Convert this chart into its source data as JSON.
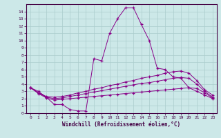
{
  "xlabel": "Windchill (Refroidissement éolien,°C)",
  "background_color": "#cce8e8",
  "line_color": "#880088",
  "x_values": [
    0,
    1,
    2,
    3,
    4,
    5,
    6,
    7,
    8,
    9,
    10,
    11,
    12,
    13,
    14,
    15,
    16,
    17,
    18,
    19,
    20,
    21,
    22,
    23
  ],
  "series1": [
    3.5,
    3.0,
    2.2,
    1.2,
    1.2,
    0.5,
    0.3,
    0.3,
    7.5,
    7.2,
    11.0,
    13.0,
    14.5,
    14.5,
    12.2,
    10.0,
    6.2,
    6.0,
    5.0,
    4.8,
    3.5,
    3.0,
    2.5,
    2.0
  ],
  "series2": [
    3.5,
    2.8,
    2.3,
    2.2,
    2.3,
    2.5,
    2.8,
    3.0,
    3.3,
    3.5,
    3.8,
    4.0,
    4.3,
    4.5,
    4.8,
    5.0,
    5.2,
    5.5,
    5.7,
    5.8,
    5.5,
    4.5,
    3.2,
    2.5
  ],
  "series3": [
    3.5,
    2.8,
    2.2,
    2.0,
    2.1,
    2.3,
    2.5,
    2.7,
    2.9,
    3.1,
    3.3,
    3.5,
    3.7,
    3.9,
    4.1,
    4.2,
    4.4,
    4.6,
    4.8,
    4.9,
    4.8,
    4.0,
    3.0,
    2.2
  ],
  "series4": [
    3.5,
    2.7,
    2.1,
    1.8,
    1.9,
    2.0,
    2.1,
    2.2,
    2.3,
    2.4,
    2.5,
    2.6,
    2.7,
    2.8,
    2.9,
    3.0,
    3.1,
    3.2,
    3.3,
    3.4,
    3.5,
    3.4,
    2.8,
    2.1
  ],
  "xlim": [
    -0.5,
    23.5
  ],
  "ylim": [
    0,
    15
  ],
  "yticks": [
    0,
    1,
    2,
    3,
    4,
    5,
    6,
    7,
    8,
    9,
    10,
    11,
    12,
    13,
    14
  ],
  "xticks": [
    0,
    1,
    2,
    3,
    4,
    5,
    6,
    7,
    8,
    9,
    10,
    11,
    12,
    13,
    14,
    15,
    16,
    17,
    18,
    19,
    20,
    21,
    22,
    23
  ]
}
